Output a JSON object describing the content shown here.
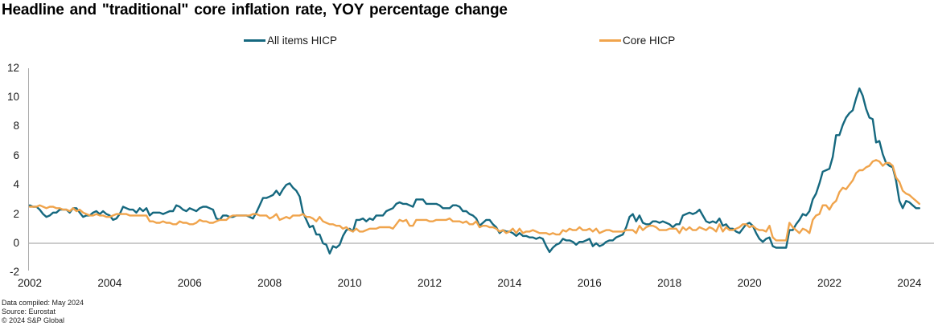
{
  "title": "Headline and \"traditional\" core inflation rate, YOY percentage change",
  "legend": [
    {
      "label": "All items HICP",
      "color": "#15687f"
    },
    {
      "label": "Core HICP",
      "color": "#f0a44c"
    }
  ],
  "footer": {
    "compiled": "Data compiled: May 2024",
    "source": "Source: Eurostat",
    "copyright": "© 2024 S&P Global"
  },
  "chart_data": {
    "type": "line",
    "title": "Headline and \"traditional\" core inflation rate, YOY percentage change",
    "xlabel": "",
    "ylabel": "",
    "x_start": "2002-01",
    "x_end": "2024-04",
    "x_frequency": "monthly",
    "ylim": [
      -2,
      12
    ],
    "yticks": [
      12,
      10,
      8,
      6,
      4,
      2,
      0,
      -2
    ],
    "xticks": [
      2002,
      2004,
      2006,
      2008,
      2010,
      2012,
      2014,
      2016,
      2018,
      2020,
      2022,
      2024
    ],
    "grid": "zero-line-only",
    "legend_position": "top",
    "axis_color": "#ababab",
    "zero_line_color": "#999999",
    "series": [
      {
        "name": "All items HICP",
        "color": "#15687f",
        "values": [
          2.6,
          2.5,
          2.5,
          2.3,
          2.0,
          1.8,
          1.9,
          2.1,
          2.1,
          2.3,
          2.3,
          2.3,
          2.1,
          2.4,
          2.4,
          2.1,
          1.8,
          1.9,
          1.9,
          2.1,
          2.2,
          2.0,
          2.2,
          2.0,
          1.9,
          1.6,
          1.7,
          2.0,
          2.5,
          2.4,
          2.3,
          2.3,
          2.1,
          2.4,
          2.2,
          2.4,
          1.9,
          2.1,
          2.1,
          2.1,
          2.0,
          2.1,
          2.2,
          2.2,
          2.6,
          2.5,
          2.3,
          2.2,
          2.4,
          2.3,
          2.2,
          2.4,
          2.5,
          2.5,
          2.4,
          2.3,
          1.7,
          1.6,
          1.9,
          1.9,
          1.8,
          1.8,
          1.9,
          1.9,
          1.9,
          1.9,
          1.8,
          1.7,
          2.1,
          2.6,
          3.1,
          3.1,
          3.2,
          3.3,
          3.6,
          3.3,
          3.7,
          4.0,
          4.1,
          3.8,
          3.6,
          3.2,
          2.1,
          1.6,
          1.1,
          1.2,
          0.6,
          0.6,
          0.0,
          -0.1,
          -0.7,
          -0.2,
          -0.3,
          -0.1,
          0.5,
          0.9,
          1.0,
          0.8,
          1.6,
          1.6,
          1.7,
          1.5,
          1.7,
          1.6,
          1.9,
          1.9,
          1.9,
          2.2,
          2.3,
          2.4,
          2.7,
          2.8,
          2.7,
          2.7,
          2.6,
          2.5,
          3.0,
          3.0,
          3.0,
          2.7,
          2.7,
          2.7,
          2.7,
          2.6,
          2.4,
          2.4,
          2.4,
          2.6,
          2.6,
          2.5,
          2.2,
          2.2,
          2.0,
          1.9,
          1.7,
          1.2,
          1.4,
          1.6,
          1.6,
          1.3,
          1.1,
          0.7,
          0.9,
          0.8,
          0.8,
          0.7,
          0.5,
          0.7,
          0.5,
          0.5,
          0.4,
          0.4,
          0.3,
          0.4,
          0.3,
          -0.2,
          -0.6,
          -0.3,
          -0.1,
          0.0,
          0.3,
          0.2,
          0.2,
          0.1,
          -0.1,
          0.1,
          0.1,
          0.2,
          0.3,
          -0.2,
          0.0,
          -0.2,
          -0.1,
          0.1,
          0.2,
          0.2,
          0.4,
          0.5,
          0.6,
          1.1,
          1.8,
          2.0,
          1.5,
          1.9,
          1.4,
          1.3,
          1.3,
          1.5,
          1.5,
          1.4,
          1.5,
          1.4,
          1.3,
          1.1,
          1.3,
          1.3,
          1.9,
          2.0,
          2.1,
          2.0,
          2.1,
          2.3,
          1.9,
          1.5,
          1.4,
          1.5,
          1.4,
          1.7,
          1.2,
          1.3,
          1.0,
          1.0,
          0.8,
          0.7,
          1.0,
          1.3,
          1.4,
          1.2,
          0.7,
          0.3,
          0.1,
          0.3,
          0.4,
          -0.2,
          -0.3,
          -0.3,
          -0.3,
          -0.3,
          0.9,
          0.9,
          1.3,
          1.6,
          2.0,
          1.9,
          2.2,
          3.0,
          3.4,
          4.1,
          4.9,
          5.0,
          5.1,
          5.9,
          7.4,
          7.4,
          8.1,
          8.6,
          8.9,
          9.1,
          9.9,
          10.6,
          10.1,
          9.2,
          8.6,
          8.5,
          6.9,
          7.0,
          6.1,
          5.5,
          5.3,
          5.2,
          4.3,
          2.9,
          2.4,
          2.9,
          2.8,
          2.6,
          2.4,
          2.4
        ]
      },
      {
        "name": "Core HICP",
        "color": "#f0a44c",
        "values": [
          2.5,
          2.5,
          2.5,
          2.6,
          2.5,
          2.4,
          2.5,
          2.5,
          2.4,
          2.4,
          2.3,
          2.3,
          2.2,
          2.4,
          2.2,
          2.3,
          2.1,
          2.0,
          1.9,
          1.9,
          2.0,
          1.9,
          1.9,
          1.8,
          1.8,
          1.9,
          2.0,
          2.0,
          2.0,
          2.0,
          1.9,
          1.9,
          1.9,
          1.9,
          1.9,
          1.9,
          1.5,
          1.5,
          1.4,
          1.4,
          1.5,
          1.4,
          1.4,
          1.3,
          1.3,
          1.5,
          1.4,
          1.4,
          1.3,
          1.3,
          1.4,
          1.6,
          1.5,
          1.5,
          1.4,
          1.4,
          1.5,
          1.6,
          1.6,
          1.6,
          1.8,
          1.9,
          1.9,
          1.9,
          1.9,
          1.9,
          1.9,
          2.0,
          2.0,
          1.9,
          1.9,
          1.9,
          1.7,
          1.8,
          2.0,
          1.6,
          1.7,
          1.8,
          1.7,
          1.9,
          1.9,
          1.9,
          2.0,
          1.8,
          1.8,
          1.7,
          1.5,
          1.8,
          1.5,
          1.4,
          1.3,
          1.3,
          1.2,
          1.2,
          1.0,
          1.1,
          0.9,
          0.8,
          1.0,
          0.8,
          0.8,
          0.9,
          1.0,
          1.0,
          1.0,
          1.1,
          1.1,
          1.1,
          1.1,
          1.0,
          1.3,
          1.6,
          1.5,
          1.6,
          1.2,
          1.2,
          1.6,
          1.6,
          1.6,
          1.6,
          1.5,
          1.5,
          1.6,
          1.6,
          1.6,
          1.6,
          1.7,
          1.5,
          1.5,
          1.5,
          1.4,
          1.5,
          1.3,
          1.3,
          1.5,
          1.1,
          1.2,
          1.2,
          1.1,
          1.1,
          1.0,
          0.8,
          0.9,
          0.7,
          0.8,
          1.0,
          0.7,
          1.0,
          0.7,
          0.8,
          0.8,
          0.9,
          0.8,
          0.7,
          0.7,
          0.7,
          0.6,
          0.7,
          0.6,
          0.6,
          0.9,
          0.8,
          1.0,
          0.9,
          0.9,
          1.1,
          0.9,
          0.9,
          1.0,
          0.8,
          1.0,
          0.7,
          0.8,
          0.9,
          0.9,
          0.8,
          0.8,
          0.8,
          0.8,
          0.9,
          0.9,
          0.9,
          0.7,
          1.2,
          0.9,
          1.1,
          1.2,
          1.2,
          1.1,
          0.9,
          0.9,
          0.9,
          1.0,
          1.0,
          1.0,
          0.7,
          1.1,
          0.9,
          1.1,
          0.9,
          0.9,
          1.1,
          1.0,
          0.9,
          1.1,
          1.0,
          0.8,
          1.3,
          0.8,
          1.1,
          0.9,
          0.9,
          1.0,
          1.1,
          1.3,
          1.3,
          1.1,
          1.2,
          1.0,
          0.9,
          0.9,
          0.8,
          1.2,
          0.4,
          0.2,
          0.2,
          0.2,
          0.2,
          1.4,
          1.1,
          0.9,
          0.7,
          1.0,
          0.9,
          0.7,
          1.6,
          1.9,
          2.0,
          2.6,
          2.6,
          2.3,
          2.7,
          2.9,
          3.5,
          3.8,
          3.7,
          4.0,
          4.3,
          4.8,
          5.0,
          5.0,
          5.2,
          5.3,
          5.6,
          5.7,
          5.6,
          5.3,
          5.5,
          5.5,
          5.3,
          4.5,
          4.2,
          3.6,
          3.4,
          3.3,
          3.1,
          2.9,
          2.7
        ]
      }
    ]
  }
}
